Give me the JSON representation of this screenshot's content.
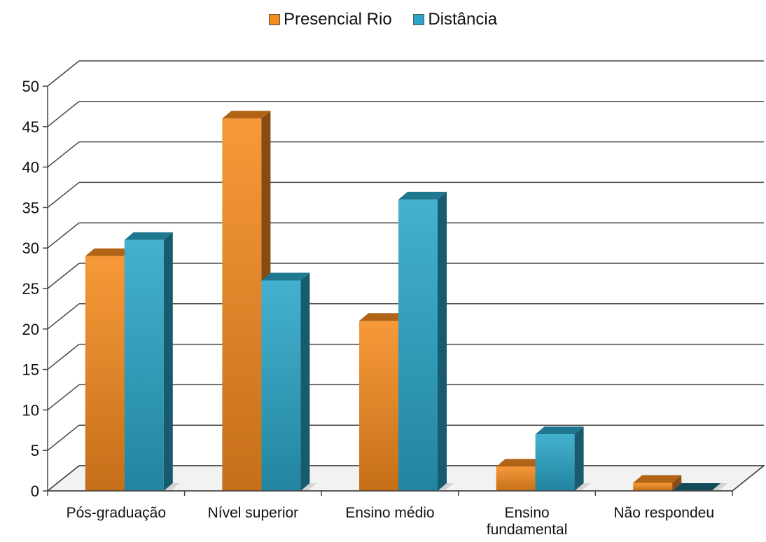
{
  "chart_data": {
    "type": "bar",
    "categories": [
      "Pós-graduação",
      "Nível superior",
      "Ensino médio",
      "Ensino fundamental",
      "Não respondeu"
    ],
    "series": [
      {
        "name": "Presencial Rio",
        "values": [
          29,
          46,
          21,
          3,
          1
        ],
        "color": "#F68B1F"
      },
      {
        "name": "Distância",
        "values": [
          31,
          26,
          36,
          7,
          0
        ],
        "color": "#2BA6C8"
      }
    ],
    "ylim": [
      0,
      50
    ],
    "yticks": [
      0,
      5,
      10,
      15,
      20,
      25,
      30,
      35,
      40,
      45,
      50
    ],
    "grid": true,
    "legend_position": "top-center",
    "three_d": true
  }
}
